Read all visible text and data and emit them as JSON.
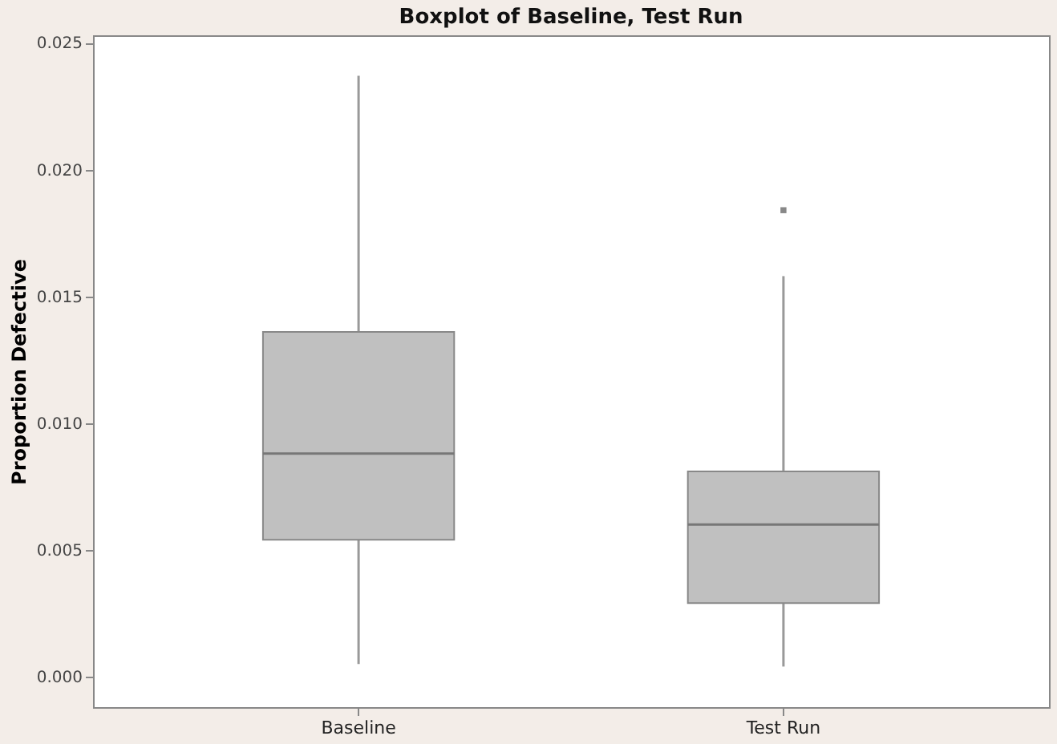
{
  "chart_data": {
    "type": "box",
    "title": "Boxplot of Baseline, Test Run",
    "ylabel": "Proportion Defective",
    "categories": [
      "Baseline",
      "Test Run"
    ],
    "color": "#c0c0c0",
    "boxes": [
      {
        "low": 0.0005,
        "q1": 0.0054,
        "median": 0.0088,
        "q3": 0.0136,
        "high": 0.0237
      },
      {
        "low": 0.0004,
        "q1": 0.0029,
        "median": 0.006,
        "q3": 0.0081,
        "high": 0.0158,
        "outliers": [
          0.0184
        ]
      }
    ],
    "ylim": [
      -0.0012,
      0.0253
    ],
    "yticks": [
      {
        "value": 0,
        "label": "0.000"
      },
      {
        "value": 0.005,
        "label": "0.005"
      },
      {
        "value": 0.01,
        "label": "0.010"
      },
      {
        "value": 0.015,
        "label": "0.015"
      },
      {
        "value": 0.02,
        "label": "0.020"
      },
      {
        "value": 0.025,
        "label": "0.025"
      }
    ],
    "grid": false
  }
}
